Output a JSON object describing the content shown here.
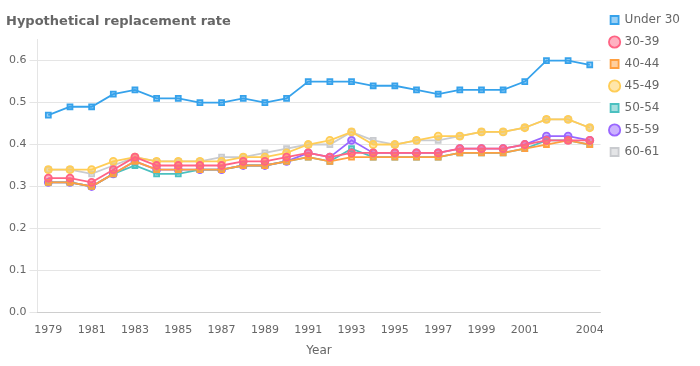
{
  "chart_data": {
    "type": "line",
    "title": "Hypothetical replacement rate",
    "xlabel": "Year",
    "x": [
      1979,
      1980,
      1981,
      1982,
      1983,
      1984,
      1985,
      1986,
      1987,
      1988,
      1989,
      1990,
      1991,
      1992,
      1993,
      1994,
      1995,
      1996,
      1997,
      1998,
      1999,
      2000,
      2001,
      2002,
      2003,
      2004
    ],
    "series": [
      {
        "name": "Under 30",
        "marker": "square",
        "values": [
          0.47,
          0.49,
          0.49,
          0.52,
          0.53,
          0.51,
          0.51,
          0.5,
          0.5,
          0.51,
          0.5,
          0.51,
          0.55,
          0.55,
          0.55,
          0.54,
          0.54,
          0.53,
          0.52,
          0.53,
          0.53,
          0.53,
          0.55,
          0.6,
          0.6,
          0.59
        ]
      },
      {
        "name": "30-39",
        "marker": "circle",
        "values": [
          0.32,
          0.32,
          0.31,
          0.34,
          0.37,
          0.35,
          0.35,
          0.35,
          0.35,
          0.36,
          0.36,
          0.37,
          0.38,
          0.37,
          0.38,
          0.38,
          0.38,
          0.38,
          0.38,
          0.39,
          0.39,
          0.39,
          0.4,
          0.41,
          0.41,
          0.41
        ]
      },
      {
        "name": "40-44",
        "marker": "square",
        "values": [
          0.31,
          0.31,
          0.3,
          0.33,
          0.36,
          0.34,
          0.34,
          0.34,
          0.34,
          0.35,
          0.35,
          0.36,
          0.37,
          0.36,
          0.37,
          0.37,
          0.37,
          0.37,
          0.37,
          0.38,
          0.38,
          0.38,
          0.39,
          0.4,
          0.41,
          0.4
        ]
      },
      {
        "name": "45-49",
        "marker": "circle",
        "values": [
          0.34,
          0.34,
          0.34,
          0.36,
          0.37,
          0.36,
          0.36,
          0.36,
          0.36,
          0.37,
          0.37,
          0.38,
          0.4,
          0.41,
          0.43,
          0.4,
          0.4,
          0.41,
          0.42,
          0.42,
          0.43,
          0.43,
          0.44,
          0.46,
          0.46,
          0.44
        ]
      },
      {
        "name": "50-54",
        "marker": "square",
        "values": [
          0.31,
          0.31,
          0.3,
          0.33,
          0.35,
          0.33,
          0.33,
          0.34,
          0.34,
          0.35,
          0.35,
          0.36,
          0.37,
          0.36,
          0.39,
          0.37,
          0.37,
          0.37,
          0.37,
          0.38,
          0.38,
          0.38,
          0.39,
          0.41,
          0.41,
          0.4
        ]
      },
      {
        "name": "55-59",
        "marker": "circle",
        "values": [
          0.31,
          0.31,
          0.3,
          0.33,
          0.36,
          0.34,
          0.34,
          0.34,
          0.34,
          0.35,
          0.35,
          0.36,
          0.38,
          0.37,
          0.41,
          0.38,
          0.38,
          0.38,
          0.38,
          0.39,
          0.39,
          0.39,
          0.4,
          0.42,
          0.42,
          0.41
        ]
      },
      {
        "name": "60-61",
        "marker": "square",
        "values": [
          0.34,
          0.34,
          0.33,
          0.35,
          0.37,
          0.36,
          0.36,
          0.36,
          0.37,
          0.37,
          0.38,
          0.39,
          0.4,
          0.4,
          0.43,
          0.41,
          0.4,
          0.41,
          0.41,
          0.42,
          0.43,
          0.43,
          0.44,
          0.46,
          0.46,
          0.44
        ]
      }
    ],
    "xlim": [
      1978.5,
      2004.5
    ],
    "xticks": [
      1979,
      1981,
      1983,
      1985,
      1987,
      1989,
      1991,
      1993,
      1995,
      1997,
      1999,
      2001,
      2004
    ],
    "ylim": [
      0.0,
      0.65
    ],
    "yticks": [
      {
        "value": 0.0,
        "label": "0.0"
      },
      0.1,
      0.2,
      0.3,
      0.4,
      0.5,
      0.6
    ],
    "grid": "y",
    "legend": "right"
  }
}
